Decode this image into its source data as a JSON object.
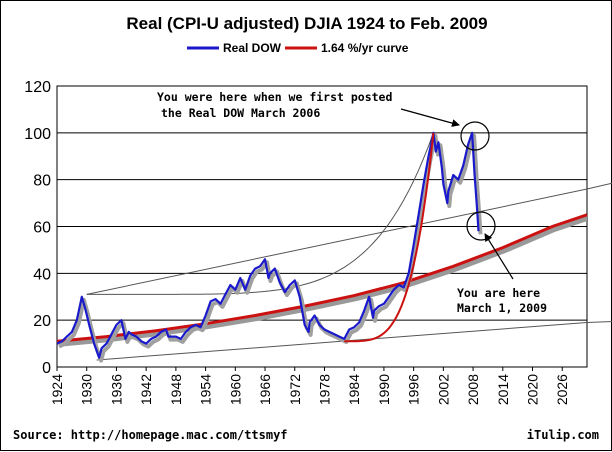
{
  "chart_data": {
    "type": "line",
    "title": "Real (CPI-U adjusted) DJIA 1924 to Feb. 2009",
    "xlabel": "",
    "ylabel": "",
    "xlim": [
      1924,
      2031
    ],
    "ylim": [
      0,
      120
    ],
    "y_ticks": [
      0,
      20,
      40,
      60,
      80,
      100,
      120
    ],
    "x_ticks": [
      1924,
      1930,
      1936,
      1942,
      1948,
      1954,
      1960,
      1966,
      1972,
      1978,
      1984,
      1990,
      1996,
      2002,
      2008,
      2014,
      2020,
      2026
    ],
    "grid": "horizontal",
    "legend_position": "top",
    "legend": [
      "Real DOW",
      "1.64 %/yr curve"
    ],
    "colors": {
      "real_dow": "#1a1acc",
      "curve": "#cc1111",
      "curve_shadow": "#999999",
      "gray_lines": "#555555",
      "grid": "#000000"
    },
    "series": [
      {
        "name": "Real DOW",
        "x": [
          1924,
          1925,
          1926,
          1927,
          1928,
          1929,
          1929.7,
          1930.5,
          1931.5,
          1932.5,
          1933,
          1934,
          1935,
          1936,
          1937,
          1937.8,
          1938.5,
          1939,
          1940,
          1941,
          1942,
          1943,
          1944,
          1945,
          1946,
          1946.5,
          1947,
          1948,
          1949,
          1950,
          1951,
          1952,
          1953,
          1954,
          1955,
          1956,
          1957,
          1958,
          1959,
          1960,
          1961,
          1962,
          1963,
          1964,
          1965,
          1966,
          1966.7,
          1967,
          1968,
          1969,
          1970,
          1971,
          1972,
          1973,
          1974,
          1974.8,
          1975,
          1976,
          1977,
          1978,
          1979,
          1980,
          1981,
          1982,
          1983,
          1984,
          1985,
          1986,
          1987,
          1987.8,
          1988,
          1989,
          1990,
          1991,
          1992,
          1993,
          1994,
          1995,
          1996,
          1997,
          1998,
          1999,
          2000,
          2000.5,
          2001,
          2001.7,
          2002,
          2002.8,
          2003,
          2004,
          2005,
          2006,
          2007,
          2007.8,
          2008.3,
          2008.8,
          2009.1
        ],
        "values": [
          10,
          11,
          13,
          15,
          20,
          30,
          25,
          18,
          10,
          4,
          8,
          10,
          14,
          18,
          20,
          12,
          15,
          14,
          13,
          11,
          10,
          12,
          13,
          15,
          16,
          13,
          13,
          13,
          12,
          15,
          17,
          18,
          17,
          22,
          28,
          29,
          27,
          31,
          35,
          33,
          38,
          33,
          39,
          42,
          43,
          46,
          38,
          40,
          42,
          36,
          32,
          35,
          37,
          30,
          18,
          15,
          19,
          22,
          18,
          16,
          15,
          14,
          13,
          12,
          16,
          17,
          19,
          24,
          30,
          21,
          24,
          26,
          27,
          30,
          33,
          35,
          34,
          40,
          52,
          65,
          78,
          90,
          100,
          92,
          96,
          85,
          78,
          70,
          75,
          82,
          80,
          86,
          95,
          100,
          82,
          68,
          58
        ]
      },
      {
        "name": "1.64 %/yr curve",
        "x": [
          1924,
          1934,
          1944,
          1954,
          1964,
          1974,
          1984,
          1994,
          2004,
          2014,
          2024,
          2031
        ],
        "values": [
          11,
          13,
          15.5,
          18.5,
          22,
          26,
          30.5,
          36,
          43,
          51,
          60,
          65
        ]
      }
    ]
  },
  "annotations": {
    "posted_line1": "You were here when we first posted",
    "posted_line2": "the Real DOW March 2006",
    "here_line1": "You are here",
    "here_line2": "March 1, 2009"
  },
  "footer": {
    "source": "Source: http://homepage.mac.com/ttsmyf",
    "brand": "iTulip.com"
  }
}
